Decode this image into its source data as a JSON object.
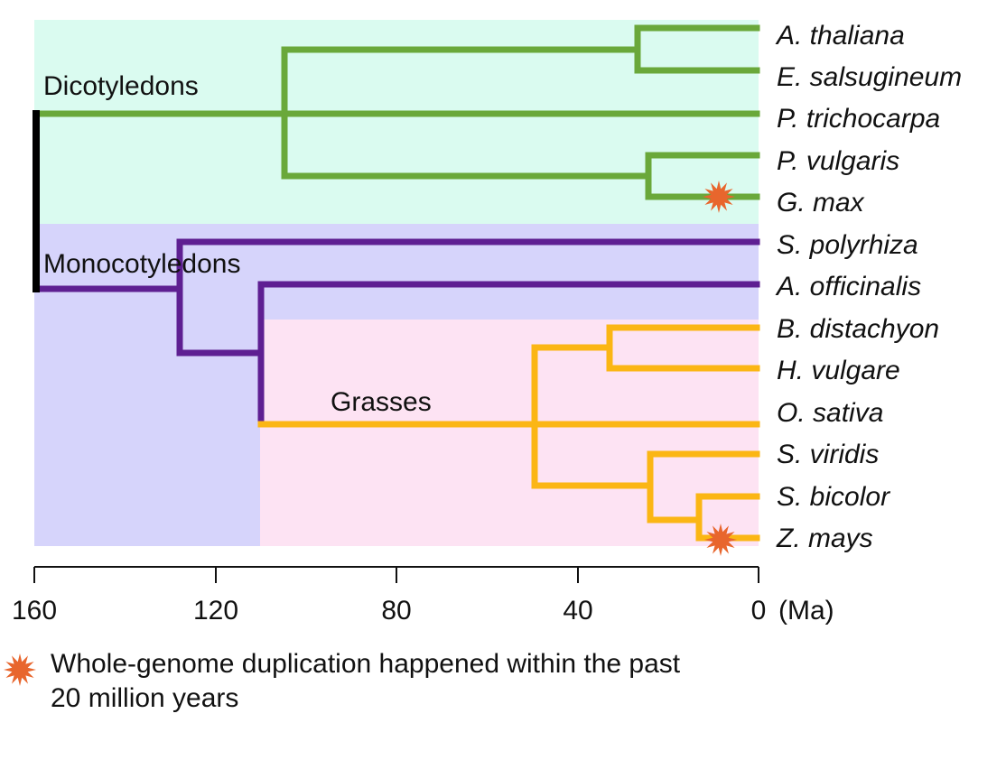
{
  "colors": {
    "dicot_bg": "#dafbf0",
    "monocot_bg": "#d6d4fb",
    "grass_bg": "#fde3f3",
    "dicot_branch": "#6aa83a",
    "monocot_branch": "#5e1f92",
    "grass_branch": "#fbb614",
    "root_branch": "#000000",
    "wgd_star": "#e8662d"
  },
  "clades": {
    "dicots": "Dicotyledons",
    "monocots": "Monocotyledons",
    "grasses": "Grasses"
  },
  "species": [
    "A. thaliana",
    "E. salsugineum",
    "P. trichocarpa",
    "P. vulgaris",
    "G. max",
    "S. polyrhiza",
    "A. officinalis",
    "B. distachyon",
    "H. vulgare",
    "O. sativa",
    "S. viridis",
    "S. bicolor",
    "Z. mays"
  ],
  "axis": {
    "ticks": [
      160,
      120,
      80,
      40,
      0
    ],
    "unit": "(Ma)"
  },
  "node_ages_ma": {
    "root": 160,
    "dicot_crown": 104,
    "athal_esals": 27,
    "pvul_gmax": 25,
    "monocot_crown": 128,
    "aoff_grass": 110,
    "grass_crown": 50,
    "bdis_hvul": 33,
    "panicoid": 24,
    "sbic_zmays": 13
  },
  "wgd_events": [
    "G. max",
    "Z. mays"
  ],
  "legend": {
    "text_line1": "Whole-genome duplication happened within the past",
    "text_line2": "20 million years"
  }
}
